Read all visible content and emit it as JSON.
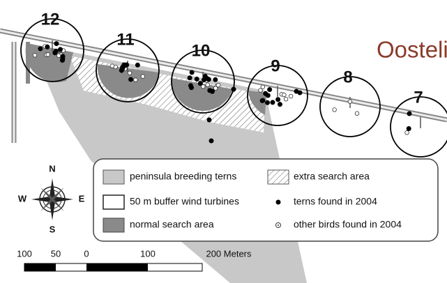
{
  "map": {
    "place_label": "Oostelijke D",
    "turbines": [
      "12",
      "11",
      "10",
      "9",
      "8",
      "7"
    ],
    "legend": [
      "peninsula breeding terns",
      "extra search area",
      "50 m buffer wind turbines",
      "terns found in 2004",
      "normal search area",
      "other birds found in 2004"
    ],
    "compass": {
      "n": "N",
      "s": "S",
      "e": "E",
      "w": "W"
    },
    "scale": {
      "labels": [
        "100",
        "50",
        "0",
        "100",
        "200 Meters"
      ]
    }
  }
}
